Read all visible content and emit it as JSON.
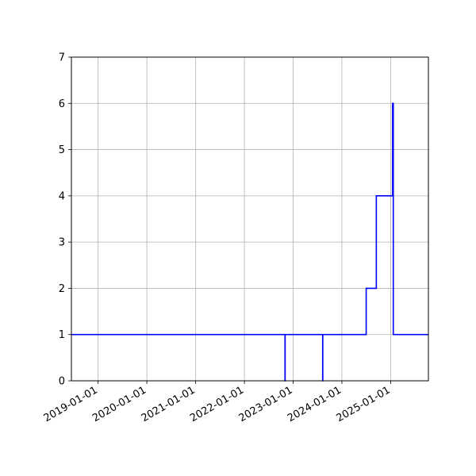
{
  "chart_data": {
    "type": "line",
    "drawstyle": "steps-post",
    "title": "",
    "xlabel": "",
    "ylabel": "",
    "x_axis_type": "date",
    "xlim": [
      "2018-06-15",
      "2025-10-10"
    ],
    "ylim": [
      0,
      7
    ],
    "grid": true,
    "colors": {
      "line": "#0000ff",
      "grid": "#b0b0b0",
      "axes": "#000000"
    },
    "x_ticks": [
      "2019-01-01",
      "2020-01-01",
      "2021-01-01",
      "2022-01-01",
      "2023-01-01",
      "2024-01-01",
      "2025-01-01"
    ],
    "y_ticks": [
      0,
      1,
      2,
      3,
      4,
      5,
      6,
      7
    ],
    "series": [
      {
        "x": [
          "2018-06-15",
          "2022-11-01",
          "2022-11-02",
          "2023-08-10",
          "2023-08-11",
          "2024-07-01",
          "2024-09-15",
          "2025-01-15",
          "2025-01-20",
          "2025-10-10"
        ],
        "y": [
          1,
          0,
          1,
          0,
          1,
          2,
          4,
          6,
          1,
          1
        ]
      }
    ]
  }
}
